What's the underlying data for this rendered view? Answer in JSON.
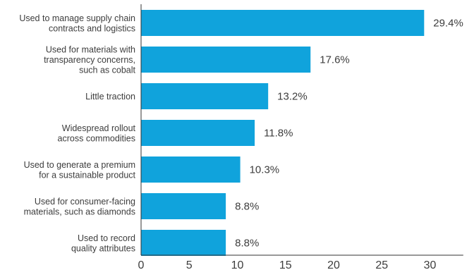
{
  "chart_data": {
    "type": "bar",
    "orientation": "horizontal",
    "categories": [
      [
        "Used to manage supply chain",
        "contracts and logistics"
      ],
      [
        "Used for materials with",
        "transparency concerns,",
        "such as cobalt"
      ],
      [
        "Little traction"
      ],
      [
        "Widespread rollout",
        "across commodities"
      ],
      [
        "Used to generate a premium",
        "for a sustainable product"
      ],
      [
        "Used for consumer-facing",
        "materials, such as diamonds"
      ],
      [
        "Used to record",
        "quality attributes"
      ]
    ],
    "values": [
      29.4,
      17.6,
      13.2,
      11.8,
      10.3,
      8.8,
      8.8
    ],
    "value_labels": [
      "29.4%",
      "17.6%",
      "13.2%",
      "11.8%",
      "10.3%",
      "8.8%",
      "8.8%"
    ],
    "x_ticks": [
      0,
      5,
      10,
      15,
      20,
      25,
      30
    ],
    "xlim": [
      0,
      32
    ],
    "grid": false,
    "bar_color": "#10a3dc",
    "text_color": "#3d3d3d",
    "axis_color": "#333333"
  }
}
